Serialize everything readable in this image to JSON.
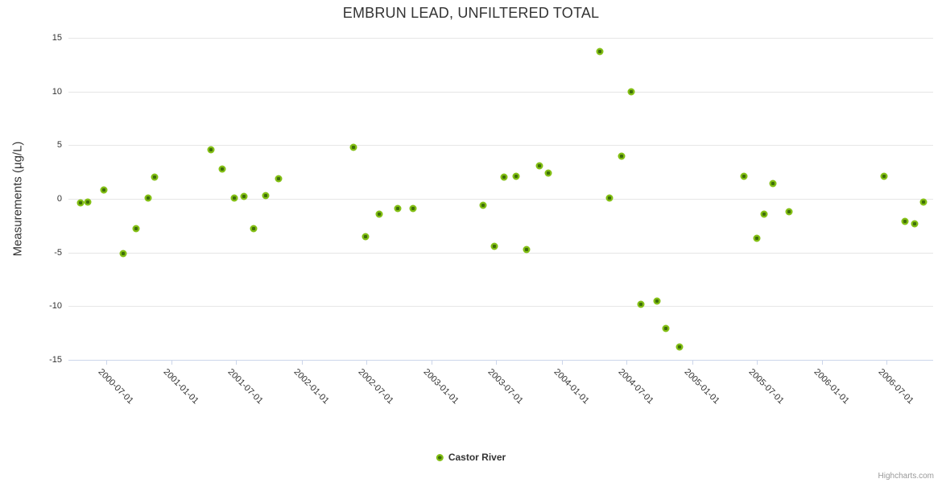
{
  "chart_data": {
    "type": "scatter",
    "title": "EMBRUN LEAD, UNFILTERED TOTAL",
    "xlabel": "",
    "ylabel": "Measurements (µg/L)",
    "ylim": [
      -15,
      15
    ],
    "y_ticks": [
      15,
      10,
      5,
      0,
      -5,
      -10,
      -15
    ],
    "x_ticks": [
      "2000-07-01",
      "2001-01-01",
      "2001-07-01",
      "2002-01-01",
      "2002-07-01",
      "2003-01-01",
      "2003-07-01",
      "2004-01-01",
      "2004-07-01",
      "2005-01-01",
      "2005-07-01",
      "2006-01-01",
      "2006-07-01"
    ],
    "x_range": [
      "2000-03-17",
      "2006-11-09"
    ],
    "grid": "horizontal-only",
    "legend_position": "bottom-center",
    "series": [
      {
        "name": "Castor River",
        "marker_outer_color": "#82be14",
        "marker_inner_color": "#3e6e08",
        "points": [
          [
            "2000-04-20",
            -0.4
          ],
          [
            "2000-05-11",
            -0.3
          ],
          [
            "2000-06-24",
            0.8
          ],
          [
            "2000-08-17",
            -5.1
          ],
          [
            "2000-09-24",
            -2.8
          ],
          [
            "2000-10-26",
            0.1
          ],
          [
            "2000-11-14",
            2.0
          ],
          [
            "2001-04-22",
            4.6
          ],
          [
            "2001-05-22",
            2.8
          ],
          [
            "2001-06-25",
            0.1
          ],
          [
            "2001-07-22",
            0.2
          ],
          [
            "2001-08-20",
            -2.8
          ],
          [
            "2001-09-23",
            0.3
          ],
          [
            "2001-10-27",
            1.9
          ],
          [
            "2002-05-26",
            4.8
          ],
          [
            "2002-06-29",
            -3.5
          ],
          [
            "2002-08-06",
            -1.4
          ],
          [
            "2002-09-28",
            -0.9
          ],
          [
            "2002-11-10",
            -0.9
          ],
          [
            "2003-05-25",
            -0.6
          ],
          [
            "2003-06-25",
            -4.4
          ],
          [
            "2003-07-23",
            2.0
          ],
          [
            "2003-08-27",
            2.1
          ],
          [
            "2003-09-25",
            -4.7
          ],
          [
            "2003-10-31",
            3.1
          ],
          [
            "2003-11-25",
            2.4
          ],
          [
            "2004-04-17",
            13.7
          ],
          [
            "2004-05-14",
            0.1
          ],
          [
            "2004-06-16",
            4.0
          ],
          [
            "2004-07-14",
            10.0
          ],
          [
            "2004-08-11",
            -9.8
          ],
          [
            "2004-09-25",
            -9.5
          ],
          [
            "2004-10-20",
            -12.1
          ],
          [
            "2004-11-27",
            -13.8
          ],
          [
            "2005-05-27",
            2.1
          ],
          [
            "2005-07-03",
            -3.7
          ],
          [
            "2005-07-22",
            -1.4
          ],
          [
            "2005-08-17",
            1.4
          ],
          [
            "2005-10-01",
            -1.2
          ],
          [
            "2006-06-25",
            2.1
          ],
          [
            "2006-08-21",
            -2.1
          ],
          [
            "2006-09-19",
            -2.3
          ],
          [
            "2006-10-14",
            -0.3
          ]
        ]
      }
    ]
  },
  "colors": {
    "grid": "#e6e6e6",
    "axis_line": "#ccd6eb",
    "text": "#333333",
    "credits_text": "#999999"
  },
  "credit": "Highcharts.com"
}
